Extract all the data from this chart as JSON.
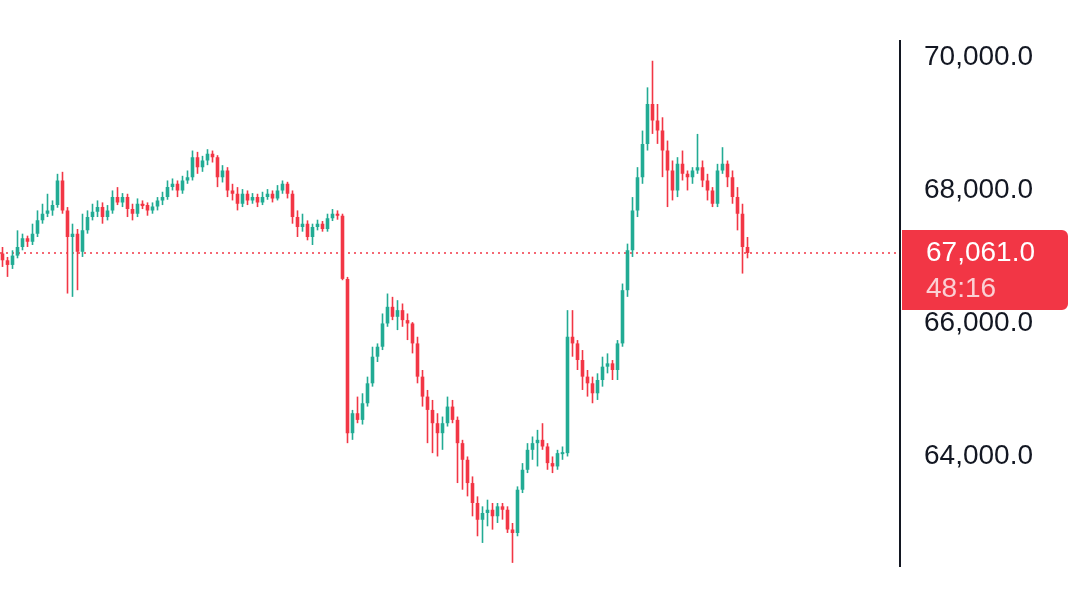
{
  "chart_data": {
    "type": "candlestick",
    "tick_labels": "y",
    "categories": [
      null,
      null,
      null,
      null,
      null,
      null,
      null,
      null,
      null,
      null,
      null,
      null,
      null,
      null,
      null,
      null,
      null,
      null,
      null,
      null,
      null,
      null,
      null,
      null,
      null,
      null,
      null,
      null,
      null,
      null,
      null,
      null,
      null,
      null,
      null,
      null,
      null,
      null,
      null,
      null,
      null,
      null,
      null,
      null,
      null,
      null,
      null,
      null,
      null,
      null,
      null,
      null,
      null,
      null,
      null,
      null,
      null,
      null,
      null,
      null,
      null,
      null,
      null,
      null,
      null,
      null,
      null,
      null,
      null,
      null,
      null,
      null,
      null,
      null,
      null,
      null,
      null,
      null,
      null,
      null,
      null,
      null,
      null,
      null,
      null,
      null,
      null,
      null,
      null,
      null,
      null,
      null,
      null,
      null,
      null,
      null,
      null,
      null,
      null,
      null,
      null,
      null,
      null,
      null,
      null,
      null,
      null,
      null,
      null,
      null,
      null,
      null,
      null,
      null,
      null,
      null,
      null,
      null,
      null,
      null,
      null,
      null,
      null,
      null,
      null,
      null,
      null,
      null,
      null,
      null,
      null,
      null,
      null,
      null,
      null,
      null,
      null,
      null,
      null,
      null,
      null,
      null,
      null,
      null,
      null,
      null,
      null,
      null,
      null,
      null,
      null,
      null,
      null,
      null,
      null,
      null,
      null,
      null,
      null,
      null,
      null,
      null,
      null,
      null,
      null,
      null,
      null,
      null,
      null,
      null,
      null,
      null,
      null,
      null,
      null,
      null,
      null,
      null,
      null,
      null
    ],
    "ohlc": [
      [
        67050,
        67150,
        66850,
        66950
      ],
      [
        66950,
        67000,
        66700,
        66880
      ],
      [
        66880,
        67100,
        66820,
        67020
      ],
      [
        67020,
        67400,
        66980,
        67150
      ],
      [
        67150,
        67350,
        67100,
        67280
      ],
      [
        67280,
        67320,
        67150,
        67230
      ],
      [
        67230,
        67500,
        67180,
        67350
      ],
      [
        67350,
        67700,
        67300,
        67550
      ],
      [
        67550,
        67800,
        67500,
        67650
      ],
      [
        67650,
        67950,
        67600,
        67700
      ],
      [
        67700,
        67850,
        67620,
        67780
      ],
      [
        67780,
        68250,
        67740,
        68150
      ],
      [
        68150,
        68280,
        67650,
        67700
      ],
      [
        67700,
        67750,
        66450,
        67300
      ],
      [
        67300,
        67500,
        66400,
        67350
      ],
      [
        67350,
        67420,
        66500,
        67080
      ],
      [
        67080,
        67650,
        67000,
        67400
      ],
      [
        67400,
        67700,
        67350,
        67600
      ],
      [
        67600,
        67800,
        67550,
        67680
      ],
      [
        67680,
        67850,
        67600,
        67750
      ],
      [
        67750,
        67820,
        67500,
        67600
      ],
      [
        67600,
        67780,
        67550,
        67700
      ],
      [
        67700,
        68000,
        67650,
        67900
      ],
      [
        67900,
        68050,
        67780,
        67820
      ],
      [
        67820,
        67960,
        67750,
        67900
      ],
      [
        67900,
        67950,
        67600,
        67720
      ],
      [
        67720,
        67800,
        67550,
        67650
      ],
      [
        67650,
        67880,
        67600,
        67800
      ],
      [
        67800,
        67850,
        67720,
        67780
      ],
      [
        67780,
        67820,
        67620,
        67700
      ],
      [
        67700,
        67820,
        67650,
        67760
      ],
      [
        67760,
        67900,
        67700,
        67850
      ],
      [
        67850,
        67980,
        67780,
        67900
      ],
      [
        67900,
        68150,
        67860,
        68050
      ],
      [
        68050,
        68180,
        68000,
        68100
      ],
      [
        68100,
        68150,
        67900,
        68000
      ],
      [
        68000,
        68220,
        67950,
        68150
      ],
      [
        68150,
        68300,
        68100,
        68200
      ],
      [
        68200,
        68600,
        68150,
        68500
      ],
      [
        68500,
        68580,
        68250,
        68350
      ],
      [
        68350,
        68520,
        68280,
        68450
      ],
      [
        68450,
        68620,
        68380,
        68550
      ],
      [
        68550,
        68600,
        68420,
        68500
      ],
      [
        68500,
        68530,
        68050,
        68200
      ],
      [
        68200,
        68380,
        68120,
        68300
      ],
      [
        68300,
        68350,
        67900,
        68000
      ],
      [
        68000,
        68100,
        67850,
        67950
      ],
      [
        67950,
        68050,
        67700,
        67800
      ],
      [
        67800,
        68020,
        67750,
        67950
      ],
      [
        67950,
        68000,
        67780,
        67850
      ],
      [
        67850,
        67960,
        67800,
        67900
      ],
      [
        67900,
        67950,
        67750,
        67820
      ],
      [
        67820,
        67980,
        67780,
        67900
      ],
      [
        67900,
        68020,
        67860,
        67950
      ],
      [
        67950,
        68000,
        67820,
        67880
      ],
      [
        67880,
        68080,
        67850,
        68000
      ],
      [
        68000,
        68150,
        67950,
        68100
      ],
      [
        68100,
        68130,
        67880,
        67950
      ],
      [
        67950,
        68000,
        67500,
        67600
      ],
      [
        67600,
        67700,
        67300,
        67450
      ],
      [
        67450,
        67650,
        67380,
        67500
      ],
      [
        67500,
        67550,
        67250,
        67300
      ],
      [
        67300,
        67500,
        67180,
        67450
      ],
      [
        67450,
        67560,
        67400,
        67500
      ],
      [
        67500,
        67540,
        67380,
        67420
      ],
      [
        67420,
        67650,
        67380,
        67580
      ],
      [
        67580,
        67720,
        67540,
        67650
      ],
      [
        67650,
        67700,
        67560,
        67620
      ],
      [
        67620,
        67650,
        66650,
        66670
      ],
      [
        66670,
        66700,
        64200,
        64350
      ],
      [
        64350,
        64700,
        64250,
        64650
      ],
      [
        64650,
        64900,
        64500,
        64550
      ],
      [
        64550,
        64950,
        64480,
        64800
      ],
      [
        64800,
        65200,
        64750,
        65100
      ],
      [
        65100,
        65650,
        65050,
        65500
      ],
      [
        65500,
        65700,
        65420,
        65650
      ],
      [
        65650,
        66150,
        65600,
        66000
      ],
      [
        66000,
        66450,
        65950,
        66250
      ],
      [
        66250,
        66400,
        66050,
        66100
      ],
      [
        66100,
        66350,
        65900,
        66200
      ],
      [
        66200,
        66300,
        65950,
        66050
      ],
      [
        66050,
        66150,
        65750,
        66000
      ],
      [
        66000,
        66020,
        65550,
        65700
      ],
      [
        65700,
        65800,
        65100,
        65200
      ],
      [
        65200,
        65300,
        64750,
        64900
      ],
      [
        64900,
        65000,
        64200,
        64700
      ],
      [
        64700,
        64850,
        64050,
        64500
      ],
      [
        64500,
        64650,
        64000,
        64350
      ],
      [
        64350,
        64600,
        64100,
        64500
      ],
      [
        64500,
        64900,
        64450,
        64750
      ],
      [
        64750,
        64850,
        64500,
        64550
      ],
      [
        64550,
        64600,
        63600,
        64200
      ],
      [
        64200,
        64250,
        63500,
        63950
      ],
      [
        63950,
        64000,
        63400,
        63600
      ],
      [
        63600,
        63700,
        63100,
        63300
      ],
      [
        63300,
        63400,
        62800,
        63050
      ],
      [
        63050,
        63250,
        62700,
        63150
      ],
      [
        63150,
        63350,
        62950,
        63200
      ],
      [
        63200,
        63300,
        62900,
        63100
      ],
      [
        63100,
        63300,
        63000,
        63250
      ],
      [
        63250,
        63300,
        63050,
        63200
      ],
      [
        63200,
        63250,
        62850,
        62900
      ],
      [
        62900,
        63000,
        62400,
        62850
      ],
      [
        62850,
        63550,
        62800,
        63500
      ],
      [
        63500,
        63900,
        63450,
        63800
      ],
      [
        63800,
        64200,
        63750,
        64100
      ],
      [
        64100,
        64300,
        63950,
        64200
      ],
      [
        64200,
        64400,
        63850,
        64250
      ],
      [
        64250,
        64500,
        64100,
        64150
      ],
      [
        64150,
        64200,
        63800,
        63900
      ],
      [
        63900,
        64000,
        63750,
        63850
      ],
      [
        63850,
        64100,
        63800,
        64050
      ],
      [
        64050,
        64150,
        63950,
        64050
      ],
      [
        64050,
        66200,
        64000,
        65800
      ],
      [
        65800,
        66200,
        65500,
        65700
      ],
      [
        65700,
        65750,
        65300,
        65450
      ],
      [
        65450,
        65600,
        65000,
        65200
      ],
      [
        65200,
        65300,
        64900,
        65100
      ],
      [
        65100,
        65200,
        64800,
        64950
      ],
      [
        64950,
        65250,
        64850,
        65150
      ],
      [
        65150,
        65500,
        65050,
        65350
      ],
      [
        65350,
        65550,
        65250,
        65400
      ],
      [
        65400,
        65450,
        65150,
        65300
      ],
      [
        65300,
        65750,
        65150,
        65700
      ],
      [
        65700,
        66600,
        65650,
        66500
      ],
      [
        66500,
        67200,
        66400,
        67100
      ],
      [
        67100,
        67900,
        67000,
        67700
      ],
      [
        67700,
        68350,
        67600,
        68200
      ],
      [
        68200,
        68900,
        68100,
        68700
      ],
      [
        68700,
        69550,
        68600,
        69300
      ],
      [
        69300,
        69950,
        68850,
        69050
      ],
      [
        69050,
        69300,
        68700,
        68900
      ],
      [
        68900,
        69100,
        68200,
        68600
      ],
      [
        68600,
        68750,
        67750,
        68300
      ],
      [
        68300,
        68450,
        67850,
        68000
      ],
      [
        68000,
        68500,
        67900,
        68400
      ],
      [
        68400,
        68600,
        68150,
        68250
      ],
      [
        68250,
        68300,
        68000,
        68200
      ],
      [
        68200,
        68350,
        68100,
        68300
      ],
      [
        68300,
        68850,
        68250,
        68350
      ],
      [
        68350,
        68450,
        68050,
        68150
      ],
      [
        68150,
        68250,
        67850,
        68000
      ],
      [
        68000,
        68050,
        67750,
        67800
      ],
      [
        67800,
        68400,
        67750,
        68300
      ],
      [
        68300,
        68650,
        68250,
        68400
      ],
      [
        68400,
        68450,
        68050,
        68200
      ],
      [
        68200,
        68300,
        67800,
        67900
      ],
      [
        67900,
        68050,
        67400,
        67650
      ],
      [
        67650,
        67800,
        66750,
        67150
      ],
      [
        67150,
        67300,
        66980,
        67061
      ],
      null,
      null,
      null,
      null,
      null,
      null,
      null,
      null,
      null,
      null,
      null,
      null,
      null,
      null,
      null,
      null,
      null,
      null,
      null,
      null,
      null,
      null,
      null,
      null,
      null,
      null,
      null,
      null,
      null,
      null
    ],
    "colors": [
      "#f23645",
      "#f23645",
      "#22ab94",
      "#22ab94",
      "#22ab94",
      "#f23645",
      "#22ab94",
      "#22ab94",
      "#22ab94",
      "#22ab94",
      "#22ab94",
      "#22ab94",
      "#f23645",
      "#f23645",
      "#22ab94",
      "#f23645",
      "#22ab94",
      "#22ab94",
      "#22ab94",
      "#22ab94",
      "#f23645",
      "#22ab94",
      "#22ab94",
      "#f23645",
      "#22ab94",
      "#f23645",
      "#f23645",
      "#22ab94",
      "#f23645",
      "#f23645",
      "#22ab94",
      "#22ab94",
      "#22ab94",
      "#22ab94",
      "#22ab94",
      "#f23645",
      "#22ab94",
      "#22ab94",
      "#22ab94",
      "#f23645",
      "#22ab94",
      "#22ab94",
      "#f23645",
      "#f23645",
      "#22ab94",
      "#f23645",
      "#f23645",
      "#f23645",
      "#22ab94",
      "#f23645",
      "#22ab94",
      "#f23645",
      "#22ab94",
      "#22ab94",
      "#f23645",
      "#22ab94",
      "#22ab94",
      "#f23645",
      "#f23645",
      "#f23645",
      "#22ab94",
      "#f23645",
      "#22ab94",
      "#22ab94",
      "#f23645",
      "#22ab94",
      "#22ab94",
      "#f23645",
      "#f23645",
      "#f23645",
      "#22ab94",
      "#f23645",
      "#22ab94",
      "#22ab94",
      "#22ab94",
      "#22ab94",
      "#22ab94",
      "#22ab94",
      "#f23645",
      "#22ab94",
      "#f23645",
      "#f23645",
      "#f23645",
      "#f23645",
      "#f23645",
      "#f23645",
      "#f23645",
      "#f23645",
      "#22ab94",
      "#22ab94",
      "#f23645",
      "#f23645",
      "#f23645",
      "#f23645",
      "#f23645",
      "#f23645",
      "#22ab94",
      "#22ab94",
      "#f23645",
      "#22ab94",
      "#f23645",
      "#f23645",
      "#f23645",
      "#22ab94",
      "#22ab94",
      "#22ab94",
      "#22ab94",
      "#22ab94",
      "#f23645",
      "#f23645",
      "#f23645",
      "#22ab94",
      "#22ab94",
      "#22ab94",
      "#f23645",
      "#f23645",
      "#f23645",
      "#f23645",
      "#f23645",
      "#22ab94",
      "#22ab94",
      "#22ab94",
      "#f23645",
      "#22ab94",
      "#22ab94",
      "#22ab94",
      "#22ab94",
      "#22ab94",
      "#22ab94",
      "#22ab94",
      "#f23645",
      "#f23645",
      "#f23645",
      "#f23645",
      "#f23645",
      "#22ab94",
      "#f23645",
      "#f23645",
      "#22ab94",
      "#22ab94",
      "#f23645",
      "#f23645",
      "#f23645",
      "#22ab94",
      "#22ab94",
      "#f23645",
      "#f23645",
      "#f23645",
      "#f23645",
      "#f23645",
      null,
      null,
      null,
      null,
      null,
      null,
      null,
      null,
      null,
      null,
      null,
      null,
      null,
      null,
      null,
      null,
      null,
      null,
      null,
      null,
      null,
      null,
      null,
      null,
      null,
      null,
      null,
      null,
      null,
      null
    ],
    "ylim": [
      62350,
      70250
    ],
    "yticks": [
      {
        "value": 64000,
        "label": "64,000.0"
      },
      {
        "value": 66000,
        "label": "66,000.0"
      },
      {
        "value": 68000,
        "label": "68,000.0"
      },
      {
        "value": 70000,
        "label": "70,000.0"
      }
    ],
    "ref_lines": [
      {
        "axis": "y",
        "value": 67061,
        "label": "67,061.0",
        "color": "#f23645",
        "line_style": "dotted"
      }
    ],
    "annotations": [
      "48:16"
    ]
  }
}
